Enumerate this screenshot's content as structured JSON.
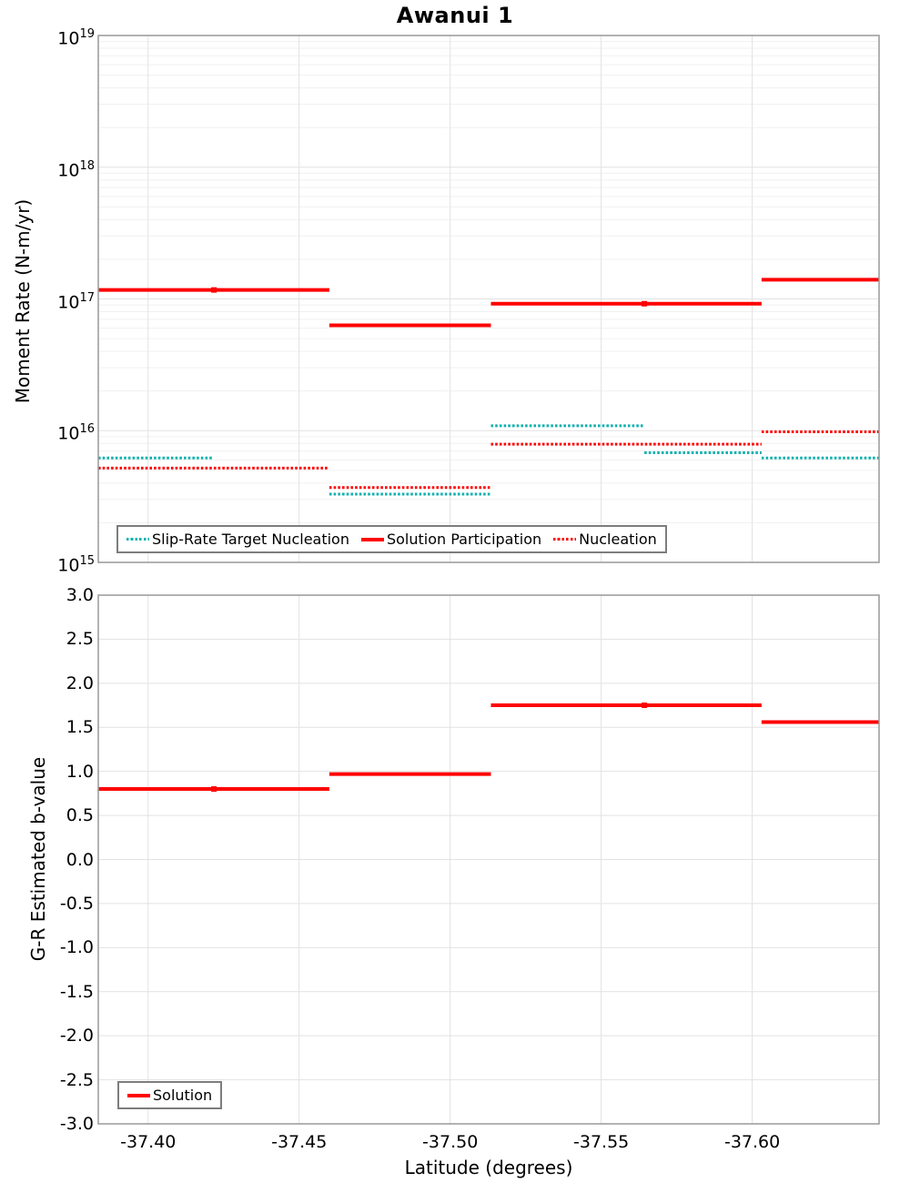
{
  "title": "Awanui 1",
  "colors": {
    "solution_red": "#fe0000",
    "target_teal": "#0fb1ae",
    "frame_gray": "#999999",
    "grid_major": "#e2e2e2",
    "grid_minor": "#f0f0f0"
  },
  "chart_data": [
    {
      "type": "line",
      "id": "moment_rate",
      "title": "Awanui 1",
      "ylabel": "Moment Rate (N-m/yr)",
      "yscale": "log",
      "ylim": [
        1000000000000000.0,
        1e+19
      ],
      "y_tick_base": "10",
      "y_tick_exponents": [
        "19",
        "18",
        "17",
        "16",
        "15"
      ],
      "xlim": [
        -37.3835,
        -37.642
      ],
      "x_ticks": [
        -37.4,
        -37.45,
        -37.5,
        -37.55,
        -37.6
      ],
      "x_tick_labels": [
        "-37.40",
        "-37.45",
        "-37.50",
        "-37.55",
        "-37.60"
      ],
      "grid": true,
      "legend_position": "inside-bottom-left",
      "legend_order": [
        0,
        2,
        1
      ],
      "series": [
        {
          "name": "Slip-Rate Target Nucleation",
          "style": "dotted",
          "color": "#0fb1ae",
          "segments": [
            {
              "x": [
                -37.3835,
                -37.4215
              ],
              "y": 6200000000000000.0
            },
            {
              "x": [
                -37.46,
                -37.5135
              ],
              "y": 3300000000000000.0
            },
            {
              "x": [
                -37.5135,
                -37.5643
              ],
              "y": 1.09e+16
            },
            {
              "x": [
                -37.5643,
                -37.6031
              ],
              "y": 6800000000000000.0
            },
            {
              "x": [
                -37.6031,
                -37.642
              ],
              "y": 6200000000000000.0
            }
          ]
        },
        {
          "name": "Nucleation",
          "style": "dotted",
          "color": "#fe0000",
          "segments": [
            {
              "x": [
                -37.3835,
                -37.46
              ],
              "y": 5200000000000000.0
            },
            {
              "x": [
                -37.46,
                -37.5135
              ],
              "y": 3700000000000000.0
            },
            {
              "x": [
                -37.5135,
                -37.6031
              ],
              "y": 7900000000000000.0
            },
            {
              "x": [
                -37.6031,
                -37.642
              ],
              "y": 9800000000000000.0
            }
          ]
        },
        {
          "name": "Solution Participation",
          "style": "solid",
          "color": "#fe0000",
          "segments": [
            {
              "x": [
                -37.3835,
                -37.46
              ],
              "y": 1.17e+17
            },
            {
              "x": [
                -37.46,
                -37.5135
              ],
              "y": 6.3e+16
            },
            {
              "x": [
                -37.5135,
                -37.6031
              ],
              "y": 9.2e+16
            },
            {
              "x": [
                -37.6031,
                -37.642
              ],
              "y": 1.4e+17
            }
          ],
          "markers": [
            {
              "x": -37.4218,
              "y": 1.17e+17
            },
            {
              "x": -37.5643,
              "y": 9.2e+16
            }
          ]
        }
      ]
    },
    {
      "type": "line",
      "id": "b_value",
      "ylabel": "G-R Estimated b-value",
      "xlabel": "Latitude (degrees)",
      "ylim": [
        -3.0,
        3.0
      ],
      "y_ticks": [
        3.0,
        2.5,
        2.0,
        1.5,
        1.0,
        0.5,
        0.0,
        -0.5,
        -1.0,
        -1.5,
        -2.0,
        -2.5,
        -3.0
      ],
      "y_tick_labels": [
        "3.0",
        "2.5",
        "2.0",
        "1.5",
        "1.0",
        "0.5",
        "0.0",
        "-0.5",
        "-1.0",
        "-1.5",
        "-2.0",
        "-2.5",
        "-3.0"
      ],
      "xlim": [
        -37.3835,
        -37.642
      ],
      "x_ticks": [
        -37.4,
        -37.45,
        -37.5,
        -37.55,
        -37.6
      ],
      "x_tick_labels": [
        "-37.40",
        "-37.45",
        "-37.50",
        "-37.55",
        "-37.60"
      ],
      "grid": true,
      "legend_position": "inside-bottom-left",
      "legend_order": [
        0
      ],
      "series": [
        {
          "name": "Solution",
          "style": "solid",
          "color": "#fe0000",
          "segments": [
            {
              "x": [
                -37.3835,
                -37.46
              ],
              "y": 0.8
            },
            {
              "x": [
                -37.46,
                -37.5135
              ],
              "y": 0.97
            },
            {
              "x": [
                -37.5135,
                -37.6031
              ],
              "y": 1.75
            },
            {
              "x": [
                -37.6031,
                -37.642
              ],
              "y": 1.56
            }
          ],
          "markers": [
            {
              "x": -37.4218,
              "y": 0.8
            },
            {
              "x": -37.5643,
              "y": 1.75
            }
          ]
        }
      ]
    }
  ]
}
